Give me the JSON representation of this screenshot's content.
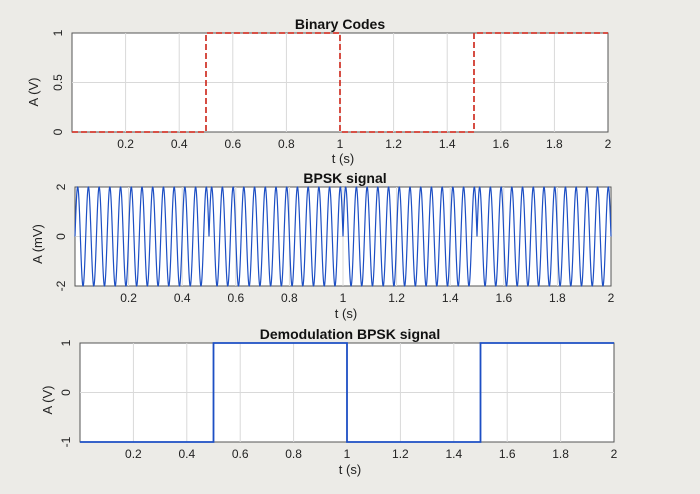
{
  "chart_data": [
    {
      "type": "line",
      "title": "Binary Codes",
      "xlabel": "t (s)",
      "ylabel": "A (V)",
      "xlim": [
        0,
        2
      ],
      "ylim": [
        0,
        1
      ],
      "xticks": [
        "0.2",
        "0.4",
        "0.6",
        "0.8",
        "1",
        "1.2",
        "1.4",
        "1.6",
        "1.8",
        "2"
      ],
      "yticks": [
        "0",
        "0.5",
        "1"
      ],
      "grid": true,
      "series": [
        {
          "color": "#d23a2f",
          "style": "dashed",
          "x": [
            0,
            0.5,
            0.5,
            1,
            1,
            1.5,
            1.5,
            2
          ],
          "y": [
            0,
            0,
            1,
            1,
            0,
            0,
            1,
            1
          ]
        }
      ]
    },
    {
      "type": "line",
      "title": "BPSK signal",
      "xlabel": "t (s)",
      "ylabel": "A (mV)",
      "xlim": [
        0,
        2
      ],
      "ylim": [
        -2,
        2
      ],
      "xticks": [
        "0.2",
        "0.4",
        "0.6",
        "0.8",
        "1",
        "1.2",
        "1.4",
        "1.6",
        "1.8",
        "2"
      ],
      "yticks": [
        "-2",
        "0",
        "2"
      ],
      "grid": true,
      "series": [
        {
          "color": "#1d4fc4",
          "amplitude": 2,
          "carrier_cycles": 50,
          "phase_flips_at": [
            0.5,
            1,
            1.5
          ]
        }
      ]
    },
    {
      "type": "line",
      "title": "Demodulation BPSK signal",
      "xlabel": "t (s)",
      "ylabel": "A (V)",
      "xlim": [
        0,
        2
      ],
      "ylim": [
        -1,
        1
      ],
      "xticks": [
        "0.2",
        "0.4",
        "0.6",
        "0.8",
        "1",
        "1.2",
        "1.4",
        "1.6",
        "1.8",
        "2"
      ],
      "yticks": [
        "-1",
        "0",
        "1"
      ],
      "grid": true,
      "series": [
        {
          "color": "#1d4fc4",
          "x": [
            0,
            0.5,
            0.5,
            1,
            1,
            1.5,
            1.5,
            2
          ],
          "y": [
            -1,
            -1,
            1,
            1,
            -1,
            -1,
            1,
            1
          ]
        }
      ]
    }
  ]
}
